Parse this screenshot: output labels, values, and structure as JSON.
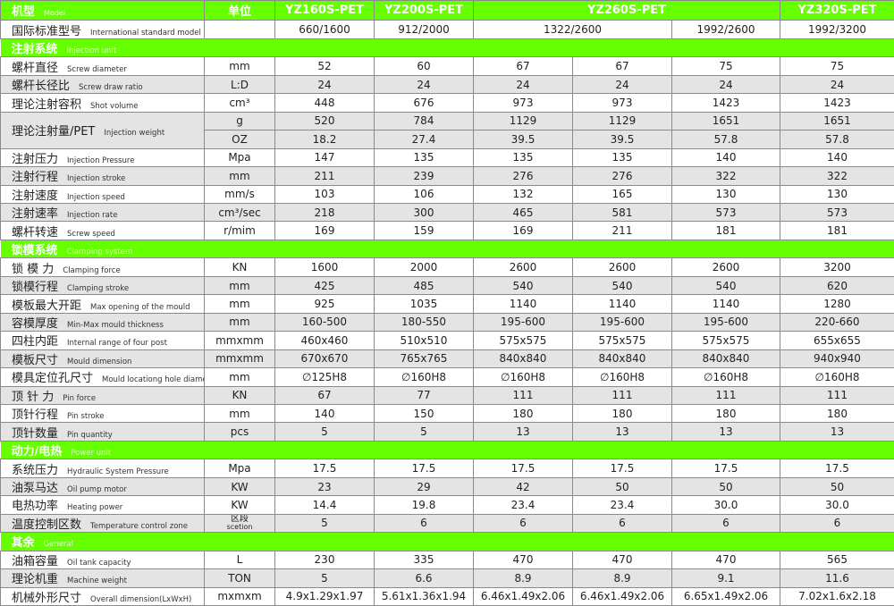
{
  "header": {
    "model_zh": "机型",
    "model_en": "Model",
    "unit": "单位",
    "models": [
      "YZ160S-PET",
      "YZ200S-PET",
      "YZ260S-PET",
      "YZ320S-PET"
    ]
  },
  "standard": {
    "zh": "国际标准型号",
    "en": "International standard model",
    "values": [
      "660/1600",
      "912/2000",
      "1322/2600",
      "1992/2600",
      "1992/3200"
    ]
  },
  "colors": {
    "accent": "#66ff00",
    "stripe": "#e4e4e4"
  },
  "sections": [
    {
      "zh": "注射系统",
      "en": "Injection unit",
      "rows": [
        {
          "zh": "螺杆直径",
          "en": "Screw diameter",
          "unit": "mm",
          "values": [
            "52",
            "60",
            "67",
            "67",
            "75",
            "75"
          ]
        },
        {
          "zh": "螺杆长径比",
          "en": "Screw draw ratio",
          "unit": "L:D",
          "values": [
            "24",
            "24",
            "24",
            "24",
            "24",
            "24"
          ]
        },
        {
          "zh": "理论注射容积",
          "en": "Shot volume",
          "unit": "cm³",
          "values": [
            "448",
            "676",
            "973",
            "973",
            "1423",
            "1423"
          ]
        },
        {
          "zh": "理论注射量/PET",
          "en": "Injection weight",
          "sub_rows": [
            {
              "unit": "g",
              "values": [
                "520",
                "784",
                "1129",
                "1129",
                "1651",
                "1651"
              ]
            },
            {
              "unit": "OZ",
              "values": [
                "18.2",
                "27.4",
                "39.5",
                "39.5",
                "57.8",
                "57.8"
              ]
            }
          ]
        },
        {
          "zh": "注射压力",
          "en": "Injection Pressure",
          "unit": "Mpa",
          "values": [
            "147",
            "135",
            "135",
            "135",
            "140",
            "140"
          ]
        },
        {
          "zh": "注射行程",
          "en": "Injection stroke",
          "unit": "mm",
          "values": [
            "211",
            "239",
            "276",
            "276",
            "322",
            "322"
          ]
        },
        {
          "zh": "注射速度",
          "en": "Injection speed",
          "unit": "mm/s",
          "values": [
            "103",
            "106",
            "132",
            "165",
            "130",
            "130"
          ]
        },
        {
          "zh": "注射速率",
          "en": "Injection rate",
          "unit": "cm³/sec",
          "values": [
            "218",
            "300",
            "465",
            "581",
            "573",
            "573"
          ]
        },
        {
          "zh": "螺杆转速",
          "en": "Screw speed",
          "unit": "r/mim",
          "values": [
            "169",
            "159",
            "169",
            "211",
            "181",
            "181"
          ]
        }
      ]
    },
    {
      "zh": "锁模系统",
      "en": "Clamping system",
      "rows": [
        {
          "zh": "锁 模 力",
          "en": "Clamping force",
          "unit": "KN",
          "values": [
            "1600",
            "2000",
            "2600",
            "2600",
            "2600",
            "3200"
          ]
        },
        {
          "zh": "锁模行程",
          "en": "Clamping stroke",
          "unit": "mm",
          "values": [
            "425",
            "485",
            "540",
            "540",
            "540",
            "620"
          ]
        },
        {
          "zh": "模板最大开距",
          "en": "Max opening of the mould",
          "unit": "mm",
          "values": [
            "925",
            "1035",
            "1140",
            "1140",
            "1140",
            "1280"
          ]
        },
        {
          "zh": "容模厚度",
          "en": "Min-Max mould thickness",
          "unit": "mm",
          "values": [
            "160-500",
            "180-550",
            "195-600",
            "195-600",
            "195-600",
            "220-660"
          ]
        },
        {
          "zh": "四柱内距",
          "en": "Internal range of four post",
          "unit": "mmxmm",
          "values": [
            "460x460",
            "510x510",
            "575x575",
            "575x575",
            "575x575",
            "655x655"
          ]
        },
        {
          "zh": "模板尺寸",
          "en": "Mould dimension",
          "unit": "mmxmm",
          "values": [
            "670x670",
            "765x765",
            "840x840",
            "840x840",
            "840x840",
            "940x940"
          ]
        },
        {
          "zh": "模具定位孔尺寸",
          "en": "Mould locationg hole diameter",
          "unit": "mm",
          "values": [
            "∅125H8",
            "∅160H8",
            "∅160H8",
            "∅160H8",
            "∅160H8",
            "∅160H8"
          ]
        },
        {
          "zh": "顶 针 力",
          "en": "Pin force",
          "unit": "KN",
          "values": [
            "67",
            "77",
            "111",
            "111",
            "111",
            "111"
          ]
        },
        {
          "zh": "顶针行程",
          "en": "Pin stroke",
          "unit": "mm",
          "values": [
            "140",
            "150",
            "180",
            "180",
            "180",
            "180"
          ]
        },
        {
          "zh": "顶针数量",
          "en": "Pin quantity",
          "unit": "pcs",
          "values": [
            "5",
            "5",
            "13",
            "13",
            "13",
            "13"
          ]
        }
      ]
    },
    {
      "zh": "动力/电热",
      "en": "Power unit",
      "rows": [
        {
          "zh": "系统压力",
          "en": "Hydraulic System Pressure",
          "unit": "Mpa",
          "values": [
            "17.5",
            "17.5",
            "17.5",
            "17.5",
            "17.5",
            "17.5"
          ]
        },
        {
          "zh": "油泵马达",
          "en": "Oil pump motor",
          "unit": "KW",
          "values": [
            "23",
            "29",
            "42",
            "50",
            "50",
            "50"
          ]
        },
        {
          "zh": "电热功率",
          "en": "Heating power",
          "unit": "KW",
          "values": [
            "14.4",
            "19.8",
            "23.4",
            "23.4",
            "30.0",
            "30.0"
          ]
        },
        {
          "zh": "温度控制区数",
          "en": "Temperature control zone",
          "unit": "区段",
          "unit_en": "scetion",
          "values": [
            "5",
            "6",
            "6",
            "6",
            "6",
            "6"
          ]
        }
      ]
    },
    {
      "zh": "其余",
      "en": "General",
      "rows": [
        {
          "zh": "油箱容量",
          "en": "Oil tank capacity",
          "unit": "L",
          "values": [
            "230",
            "335",
            "470",
            "470",
            "470",
            "565"
          ]
        },
        {
          "zh": "理论机重",
          "en": "Machine weight",
          "unit": "TON",
          "values": [
            "5",
            "6.6",
            "8.9",
            "8.9",
            "9.1",
            "11.6"
          ]
        },
        {
          "zh": "机械外形尺寸",
          "en": "Overall dimension(LxWxH)",
          "unit": "mxmxm",
          "values": [
            "4.9x1.29x1.97",
            "5.61x1.36x1.94",
            "6.46x1.49x2.06",
            "6.46x1.49x2.06",
            "6.65x1.49x2.06",
            "7.02x1.6x2.18"
          ]
        }
      ]
    }
  ]
}
